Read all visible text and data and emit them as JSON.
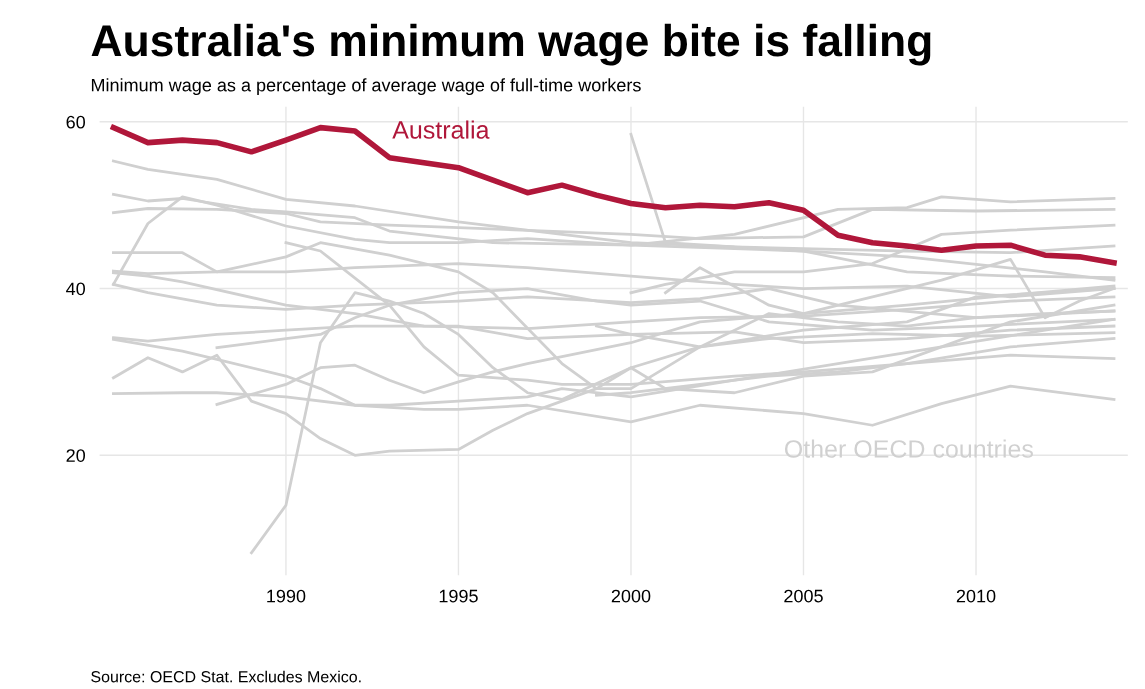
{
  "chart_data": {
    "type": "line",
    "title": "Australia's minimum wage bite is falling",
    "subtitle": "Minimum wage as a percentage of average wage of full-time workers",
    "annotations": [
      "Other OECD countries",
      "Source: OECD Stat. Excludes Mexico."
    ],
    "xlim": [
      1984.6,
      2014.4
    ],
    "xticks": [
      1990,
      1995,
      2000,
      2005,
      2010
    ],
    "ylim": [
      5.6,
      61.8
    ],
    "yticks": [
      20,
      40,
      60
    ],
    "grid": true,
    "legend": false,
    "marker": "none",
    "line_style": "solid",
    "series": [
      {
        "color": "#d0d0d0",
        "x": [
          1985,
          1986,
          1988,
          1990,
          1992,
          1995,
          1998,
          2000,
          2003,
          2005,
          2008,
          2011,
          2014
        ],
        "values": [
          55.3,
          54.3,
          53.1,
          50.7,
          49.9,
          48,
          46.5,
          45.5,
          45,
          44.5,
          42,
          41.5,
          41.3
        ]
      },
      {
        "color": "#d0d0d0",
        "x": [
          1985,
          1986,
          1987,
          1989,
          1990,
          1992,
          1993,
          1996,
          2000,
          2003,
          2006,
          2008,
          2009,
          2011,
          2014
        ],
        "values": [
          51.3,
          50.5,
          50.8,
          49.5,
          49.2,
          48.5,
          46.9,
          45.5,
          45.2,
          46.5,
          49.5,
          49.7,
          51.0,
          50.4,
          50.8
        ]
      },
      {
        "color": "#d0d0d0",
        "x": [
          1985,
          1986,
          1988,
          1990,
          1991,
          1993,
          1995,
          2000,
          2002,
          2005,
          2007,
          2010,
          2014
        ],
        "values": [
          49.1,
          49.6,
          49.5,
          49,
          48,
          47.6,
          47.3,
          46.5,
          46,
          46.2,
          49.5,
          49.3,
          49.5
        ]
      },
      {
        "color": "#d0d0d0",
        "x": [
          1985,
          1986,
          1987,
          1988,
          1990,
          1992,
          1993,
          1995,
          1997,
          2000,
          2005,
          2008,
          2012,
          2014
        ],
        "values": [
          40.5,
          47.8,
          51,
          50,
          47.5,
          45.9,
          45.5,
          45.5,
          46,
          45.2,
          44.5,
          43.8,
          42,
          41
        ]
      },
      {
        "color": "#d0d0d0",
        "x": [
          1985,
          1987,
          1988,
          1990,
          1991,
          1993,
          1995,
          1996,
          1998,
          1999,
          2000,
          2002,
          2005,
          2008,
          2010,
          2014
        ],
        "values": [
          44.3,
          44.3,
          42,
          43.8,
          45.5,
          44,
          42,
          39.5,
          31,
          28,
          28,
          33,
          35,
          36,
          39,
          40
        ]
      },
      {
        "color": "#d0d0d0",
        "x": [
          1985,
          1986,
          1988,
          1990,
          1992,
          1995,
          1997,
          2000,
          2003,
          2005,
          2008,
          2011,
          2014
        ],
        "values": [
          42.1,
          41.8,
          42,
          42,
          42.5,
          43,
          42.5,
          41.5,
          40.5,
          40,
          40.3,
          39,
          40
        ]
      },
      {
        "color": "#d0d0d0",
        "x": [
          1985,
          1986,
          1987,
          1990,
          1992,
          1994,
          1997,
          2000,
          2002,
          2005,
          2008,
          2011,
          2014
        ],
        "values": [
          41.9,
          41.5,
          40.8,
          38,
          37,
          35.5,
          35.2,
          36,
          36.5,
          36.7,
          37.5,
          38.5,
          39
        ]
      },
      {
        "color": "#d0d0d0",
        "x": [
          1985,
          1986,
          1988,
          1990,
          1992,
          1995,
          1997,
          2000,
          2002,
          2004,
          2006,
          2010,
          2014
        ],
        "values": [
          40.5,
          39.5,
          38,
          37.5,
          38,
          38.5,
          39,
          38.3,
          38.8,
          40,
          38,
          36.5,
          37.3
        ]
      },
      {
        "color": "#d0d0d0",
        "x": [
          1985,
          1986,
          1988,
          1990,
          1992,
          1995,
          1997,
          2000,
          2003,
          2005,
          2008,
          2011,
          2014
        ],
        "values": [
          34.1,
          33.7,
          34.5,
          35,
          35.5,
          35.5,
          34,
          34.5,
          34.8,
          33.5,
          34,
          35,
          35.5
        ]
      },
      {
        "color": "#d0d0d0",
        "x": [
          1985,
          1987,
          1988,
          1990,
          1991,
          1992,
          1993,
          1995,
          1997,
          1998,
          2000,
          2003,
          2006,
          2009,
          2012,
          2014
        ],
        "values": [
          33.9,
          32.5,
          31.5,
          29.5,
          28,
          26,
          26,
          26.5,
          27,
          28,
          27,
          29,
          31,
          33,
          35,
          36.3
        ]
      },
      {
        "color": "#d0d0d0",
        "x": [
          1985,
          1986,
          1987,
          1988,
          1989,
          1990,
          1991,
          1992,
          1993,
          1995,
          1996,
          1997,
          1999,
          2000,
          2002,
          2004,
          2007,
          2010,
          2014
        ],
        "values": [
          29.3,
          31.7,
          30,
          32,
          26.5,
          25,
          22,
          20,
          20.5,
          20.7,
          23,
          25,
          28,
          30.5,
          33,
          34,
          34.6,
          34.3,
          34.7
        ]
      },
      {
        "color": "#d0d0d0",
        "x": [
          1985,
          1987,
          1988,
          1990,
          1992,
          1994,
          1995,
          1997,
          2000,
          2002,
          2005,
          2007,
          2009,
          2011,
          2014
        ],
        "values": [
          27.4,
          27.5,
          27.5,
          27,
          26,
          25.5,
          25.5,
          26,
          24,
          26,
          25,
          23.6,
          26.2,
          28.3,
          26.7
        ]
      },
      {
        "color": "#d0d0d0",
        "x": [
          1988,
          1990,
          1991,
          1992,
          1993,
          1995,
          1997,
          1999,
          2000,
          2002,
          2004,
          2007,
          2010,
          2014
        ],
        "values": [
          32.9,
          34,
          34.5,
          36.5,
          38,
          39.5,
          40,
          38.5,
          38,
          38.5,
          36,
          35,
          35.5,
          36.3
        ]
      },
      {
        "color": "#d0d0d0",
        "x": [
          1988,
          1989,
          1990,
          1991,
          1992,
          1993,
          1994,
          1995,
          1996,
          1997,
          2000,
          2002,
          2005,
          2008,
          2011,
          2014
        ],
        "values": [
          26.1,
          27.3,
          28.5,
          30.5,
          30.8,
          29,
          27.5,
          28.8,
          30,
          31,
          33.5,
          36,
          37,
          38,
          39.2,
          40.3
        ]
      },
      {
        "color": "#d0d0d0",
        "x": [
          1989,
          1990,
          1991,
          1992,
          1993,
          1994,
          1995,
          1996,
          1997,
          1998,
          2000,
          2001,
          2003,
          2005,
          2007,
          2009,
          2011,
          2014
        ],
        "values": [
          8.3,
          14,
          33.5,
          39.5,
          38.5,
          37,
          34.5,
          30.5,
          27.5,
          26.7,
          30.5,
          28,
          27.5,
          29.5,
          30,
          33,
          36,
          38
        ]
      },
      {
        "color": "#d0d0d0",
        "x": [
          1990,
          1991,
          1993,
          1994,
          1995,
          1997,
          1998,
          2000,
          2003,
          2005,
          2008,
          2011,
          2014
        ],
        "values": [
          45.5,
          44.5,
          38,
          33,
          29.6,
          29,
          28.5,
          28.5,
          29.5,
          30,
          31,
          33,
          34
        ]
      },
      {
        "color": "#d0d0d0",
        "x": [
          2000,
          2001,
          2003,
          2005,
          2008,
          2011,
          2014
        ],
        "values": [
          58.5,
          45.5,
          45,
          44.8,
          44.5,
          44.3,
          45.1
        ]
      },
      {
        "color": "#d0d0d0",
        "x": [
          2000,
          2001,
          2003,
          2005,
          2007,
          2009,
          2011,
          2014
        ],
        "values": [
          39.5,
          40.5,
          42,
          42,
          43,
          46.5,
          47,
          47.6
        ]
      },
      {
        "color": "#d0d0d0",
        "x": [
          1999,
          2000,
          2002,
          2004,
          2006,
          2008,
          2010,
          2012,
          2014
        ],
        "values": [
          35.5,
          34.5,
          33,
          37,
          36,
          35.5,
          36.5,
          37,
          37.3
        ]
      },
      {
        "color": "#d0d0d0",
        "x": [
          1999,
          2000,
          2002,
          2004,
          2006,
          2008,
          2011,
          2014
        ],
        "values": [
          27.2,
          27.5,
          28.5,
          29.5,
          30,
          31,
          32,
          31.6
        ]
      },
      {
        "color": "#d0d0d0",
        "x": [
          2001,
          2002,
          2004,
          2005,
          2007,
          2009,
          2011,
          2012,
          2013,
          2014
        ],
        "values": [
          39.5,
          42.5,
          38,
          37,
          39,
          41,
          43.5,
          36.5,
          38.5,
          40
        ]
      },
      {
        "name": "Australia",
        "color": "#b0173a",
        "x": [
          1985,
          1986,
          1987,
          1988,
          1989,
          1990,
          1991,
          1992,
          1993,
          1994,
          1995,
          1996,
          1997,
          1998,
          1999,
          2000,
          2001,
          2002,
          2003,
          2004,
          2005,
          2006,
          2007,
          2008,
          2009,
          2010,
          2011,
          2012,
          2013,
          2014
        ],
        "values": [
          59.3,
          57.5,
          57.8,
          57.5,
          56.4,
          57.8,
          59.3,
          58.9,
          55.7,
          55.1,
          54.5,
          53.0,
          51.5,
          52.4,
          51.2,
          50.2,
          49.7,
          50.0,
          49.8,
          50.3,
          49.4,
          46.4,
          45.5,
          45.1,
          44.6,
          45.1,
          45.2,
          44.0,
          43.8,
          43.1
        ]
      }
    ]
  }
}
